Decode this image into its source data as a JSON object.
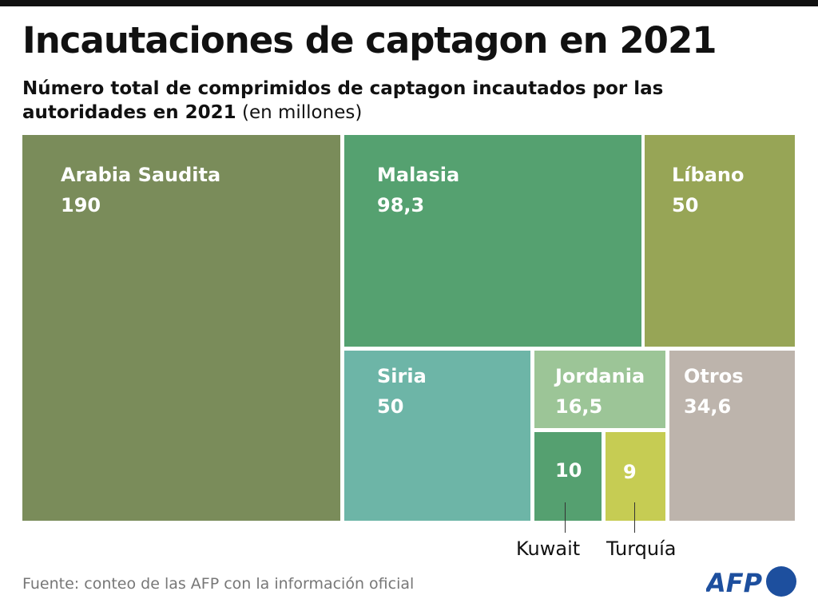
{
  "title": "Incautaciones de captagon en 2021",
  "subtitle_bold": "Número total de comprimidos de captagon incautados por las autoridades en 2021",
  "subtitle_unit": "(en millones)",
  "source": "Fuente: conteo de las AFP con la información oficial",
  "logo_text": "AFP",
  "chart_data": {
    "type": "treemap",
    "title": "Incautaciones de captagon en 2021",
    "unit": "millones de comprimidos",
    "items": [
      {
        "name": "Arabia Saudita",
        "value": 190,
        "label": "190",
        "color": "#7a8c5a"
      },
      {
        "name": "Malasia",
        "value": 98.3,
        "label": "98,3",
        "color": "#55a170"
      },
      {
        "name": "Líbano",
        "value": 50,
        "label": "50",
        "color": "#97a556"
      },
      {
        "name": "Siria",
        "value": 50,
        "label": "50",
        "color": "#6db5a7"
      },
      {
        "name": "Jordania",
        "value": 16.5,
        "label": "16,5",
        "color": "#9cc597"
      },
      {
        "name": "Kuwait",
        "value": 10,
        "label": "10",
        "color": "#55a070"
      },
      {
        "name": "Turquía",
        "value": 9,
        "label": "9",
        "color": "#c6cc53"
      },
      {
        "name": "Otros",
        "value": 34.6,
        "label": "34,6",
        "color": "#bdb4ac"
      }
    ]
  }
}
